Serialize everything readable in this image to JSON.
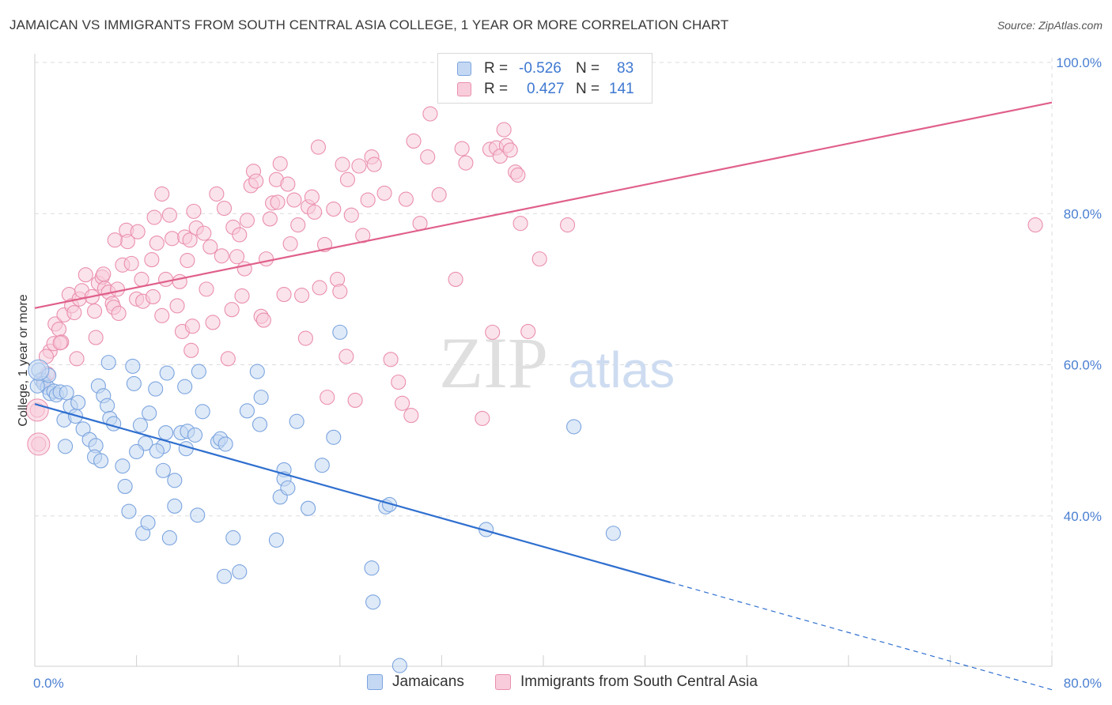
{
  "title": "JAMAICAN VS IMMIGRANTS FROM SOUTH CENTRAL ASIA COLLEGE, 1 YEAR OR MORE CORRELATION CHART",
  "source": "Source: ZipAtlas.com",
  "watermark": {
    "zip": "ZIP",
    "atlas": "atlas"
  },
  "legend_top": [
    {
      "r_label": "R =",
      "r_value": "-0.526",
      "n_label": "N =",
      "n_value": "83"
    },
    {
      "r_label": "R =",
      "r_value": "0.427",
      "n_label": "N =",
      "n_value": "141"
    }
  ],
  "legend_bottom": [
    "Jamaicans",
    "Immigrants from South Central Asia"
  ],
  "colors": {
    "blue_fill": "#c4d8f3",
    "blue_stroke": "#7ba4df",
    "blue_line": "#2f6fcf",
    "pink_fill": "#f8ccda",
    "pink_stroke": "#ea8fad",
    "pink_line": "#e0608a",
    "grid": "#dcdcdc",
    "tick_text": "#4a7fd1"
  },
  "chart_data": {
    "type": "scatter",
    "title": "JAMAICAN VS IMMIGRANTS FROM SOUTH CENTRAL ASIA COLLEGE, 1 YEAR OR MORE CORRELATION CHART",
    "xlabel": "",
    "ylabel": "College, 1 year or more",
    "xlim": [
      0,
      80
    ],
    "ylim": [
      20,
      102
    ],
    "x_tick_labels": [
      "0.0%",
      "80.0%"
    ],
    "y_ticks": [
      40,
      60,
      80,
      100
    ],
    "y_tick_labels": [
      "40.0%",
      "60.0%",
      "80.0%",
      "100.0%"
    ],
    "grid": true,
    "legend_position": "top-center",
    "series": [
      {
        "name": "Jamaicans",
        "r": -0.526,
        "n": 83,
        "trend": {
          "x_start": 0,
          "y_start": 54.8,
          "x_end": 50,
          "y_end": 31.2,
          "dashed_to_x": 80,
          "dashed_to_y": 17.0
        },
        "points": [
          [
            0.3,
            59.3
          ],
          [
            0.5,
            58.0
          ],
          [
            0.7,
            57.5
          ],
          [
            1.0,
            57.0
          ],
          [
            1.2,
            56.2
          ],
          [
            1.5,
            56.5
          ],
          [
            1.7,
            56.0
          ],
          [
            2.0,
            56.4
          ],
          [
            2.5,
            56.3
          ],
          [
            2.8,
            54.5
          ],
          [
            2.3,
            52.7
          ],
          [
            3.2,
            53.2
          ],
          [
            2.4,
            49.2
          ],
          [
            3.8,
            51.5
          ],
          [
            4.3,
            50.1
          ],
          [
            4.8,
            49.3
          ],
          [
            5.0,
            57.2
          ],
          [
            5.4,
            55.9
          ],
          [
            5.7,
            54.6
          ],
          [
            5.9,
            52.9
          ],
          [
            6.2,
            52.2
          ],
          [
            5.8,
            60.3
          ],
          [
            7.7,
            59.8
          ],
          [
            7.8,
            57.5
          ],
          [
            8.3,
            52.0
          ],
          [
            8.7,
            49.6
          ],
          [
            4.7,
            47.8
          ],
          [
            5.2,
            47.3
          ],
          [
            6.9,
            46.6
          ],
          [
            7.1,
            43.9
          ],
          [
            7.4,
            40.6
          ],
          [
            8.0,
            48.5
          ],
          [
            8.5,
            37.7
          ],
          [
            8.9,
            39.1
          ],
          [
            9.0,
            53.6
          ],
          [
            9.5,
            56.8
          ],
          [
            10.1,
            49.2
          ],
          [
            10.3,
            51.0
          ],
          [
            10.1,
            46.0
          ],
          [
            10.4,
            58.9
          ],
          [
            10.6,
            37.1
          ],
          [
            11.0,
            44.7
          ],
          [
            11.0,
            41.3
          ],
          [
            11.5,
            51.0
          ],
          [
            11.8,
            57.1
          ],
          [
            11.9,
            48.9
          ],
          [
            12.0,
            51.2
          ],
          [
            12.6,
            50.7
          ],
          [
            12.8,
            40.1
          ],
          [
            12.9,
            59.1
          ],
          [
            14.4,
            49.8
          ],
          [
            14.6,
            50.2
          ],
          [
            15.0,
            49.5
          ],
          [
            14.9,
            32.0
          ],
          [
            15.6,
            37.1
          ],
          [
            16.1,
            32.6
          ],
          [
            16.7,
            53.9
          ],
          [
            17.5,
            59.1
          ],
          [
            17.7,
            52.1
          ],
          [
            17.8,
            55.7
          ],
          [
            19.0,
            36.8
          ],
          [
            19.3,
            42.5
          ],
          [
            19.6,
            46.1
          ],
          [
            19.6,
            44.9
          ],
          [
            19.9,
            43.7
          ],
          [
            20.6,
            52.5
          ],
          [
            21.5,
            41.0
          ],
          [
            22.6,
            46.7
          ],
          [
            23.5,
            50.4
          ],
          [
            24.0,
            64.3
          ],
          [
            26.5,
            33.1
          ],
          [
            26.6,
            28.6
          ],
          [
            27.6,
            41.2
          ],
          [
            27.9,
            41.5
          ],
          [
            28.7,
            20.2
          ],
          [
            35.5,
            38.2
          ],
          [
            42.4,
            51.8
          ],
          [
            45.5,
            37.7
          ],
          [
            0.2,
            57.2
          ],
          [
            1.1,
            58.6
          ],
          [
            9.6,
            48.6
          ],
          [
            13.2,
            53.8
          ],
          [
            3.4,
            55.0
          ]
        ]
      },
      {
        "name": "Immigrants from South Central Asia",
        "r": 0.427,
        "n": 141,
        "trend": {
          "x_start": 0,
          "y_start": 67.5,
          "x_end": 80,
          "y_end": 94.7
        },
        "points": [
          [
            0.2,
            54.0
          ],
          [
            0.3,
            49.5
          ],
          [
            0.7,
            58.0
          ],
          [
            1.0,
            58.8
          ],
          [
            1.2,
            61.8
          ],
          [
            1.5,
            62.8
          ],
          [
            1.6,
            65.4
          ],
          [
            1.9,
            64.7
          ],
          [
            2.1,
            63.0
          ],
          [
            2.3,
            66.6
          ],
          [
            2.7,
            69.3
          ],
          [
            2.9,
            67.8
          ],
          [
            3.1,
            66.9
          ],
          [
            3.3,
            60.8
          ],
          [
            3.5,
            68.7
          ],
          [
            3.7,
            69.8
          ],
          [
            4.0,
            71.9
          ],
          [
            4.5,
            69.0
          ],
          [
            4.7,
            67.1
          ],
          [
            4.8,
            63.6
          ],
          [
            5.0,
            70.8
          ],
          [
            5.3,
            71.6
          ],
          [
            5.4,
            72.0
          ],
          [
            5.5,
            70.1
          ],
          [
            5.8,
            69.6
          ],
          [
            6.1,
            68.1
          ],
          [
            6.2,
            67.6
          ],
          [
            6.5,
            70.0
          ],
          [
            6.6,
            66.8
          ],
          [
            6.9,
            73.2
          ],
          [
            7.2,
            77.8
          ],
          [
            7.3,
            76.3
          ],
          [
            7.6,
            73.4
          ],
          [
            8.0,
            68.7
          ],
          [
            8.1,
            77.6
          ],
          [
            8.4,
            71.3
          ],
          [
            8.5,
            68.4
          ],
          [
            9.2,
            73.9
          ],
          [
            9.3,
            69.0
          ],
          [
            9.6,
            76.1
          ],
          [
            10.0,
            66.5
          ],
          [
            10.0,
            82.6
          ],
          [
            10.3,
            71.3
          ],
          [
            10.6,
            79.8
          ],
          [
            10.8,
            76.7
          ],
          [
            11.2,
            67.8
          ],
          [
            11.4,
            71.0
          ],
          [
            11.6,
            64.4
          ],
          [
            11.8,
            76.9
          ],
          [
            12.0,
            73.8
          ],
          [
            12.2,
            76.5
          ],
          [
            12.4,
            65.1
          ],
          [
            12.5,
            80.3
          ],
          [
            12.7,
            78.1
          ],
          [
            13.3,
            77.4
          ],
          [
            13.5,
            70.0
          ],
          [
            13.8,
            75.6
          ],
          [
            14.0,
            65.6
          ],
          [
            14.3,
            82.6
          ],
          [
            14.7,
            74.4
          ],
          [
            15.2,
            60.8
          ],
          [
            15.5,
            67.3
          ],
          [
            15.6,
            78.2
          ],
          [
            15.9,
            74.3
          ],
          [
            16.1,
            77.2
          ],
          [
            16.3,
            69.1
          ],
          [
            16.5,
            72.7
          ],
          [
            16.7,
            79.1
          ],
          [
            17.0,
            83.7
          ],
          [
            17.2,
            85.6
          ],
          [
            17.4,
            84.3
          ],
          [
            17.8,
            66.4
          ],
          [
            18.0,
            65.9
          ],
          [
            18.2,
            74.0
          ],
          [
            18.5,
            79.3
          ],
          [
            18.7,
            81.4
          ],
          [
            19.0,
            84.5
          ],
          [
            19.3,
            86.6
          ],
          [
            19.6,
            69.3
          ],
          [
            19.9,
            83.9
          ],
          [
            20.1,
            76.0
          ],
          [
            20.4,
            81.8
          ],
          [
            20.7,
            78.5
          ],
          [
            21.0,
            69.2
          ],
          [
            21.3,
            63.5
          ],
          [
            21.5,
            80.9
          ],
          [
            21.8,
            82.2
          ],
          [
            22.0,
            80.2
          ],
          [
            22.3,
            88.8
          ],
          [
            22.8,
            75.9
          ],
          [
            23.0,
            55.7
          ],
          [
            23.5,
            80.6
          ],
          [
            23.8,
            71.3
          ],
          [
            24.0,
            69.7
          ],
          [
            24.2,
            86.5
          ],
          [
            24.6,
            84.5
          ],
          [
            24.9,
            79.8
          ],
          [
            25.2,
            55.3
          ],
          [
            25.5,
            86.3
          ],
          [
            25.8,
            77.1
          ],
          [
            26.2,
            81.8
          ],
          [
            26.5,
            87.5
          ],
          [
            27.5,
            82.7
          ],
          [
            28.0,
            60.7
          ],
          [
            28.6,
            57.7
          ],
          [
            28.9,
            54.9
          ],
          [
            29.2,
            81.9
          ],
          [
            29.6,
            53.3
          ],
          [
            29.8,
            89.6
          ],
          [
            30.3,
            78.7
          ],
          [
            31.1,
            93.2
          ],
          [
            31.8,
            82.5
          ],
          [
            33.1,
            71.3
          ],
          [
            33.6,
            88.6
          ],
          [
            33.9,
            86.7
          ],
          [
            35.2,
            52.9
          ],
          [
            36.0,
            64.3
          ],
          [
            35.8,
            88.5
          ],
          [
            36.3,
            88.7
          ],
          [
            36.6,
            87.6
          ],
          [
            36.9,
            91.1
          ],
          [
            37.1,
            89.0
          ],
          [
            37.8,
            85.5
          ],
          [
            38.0,
            85.1
          ],
          [
            38.2,
            78.7
          ],
          [
            38.8,
            64.4
          ],
          [
            39.7,
            74.0
          ],
          [
            41.9,
            78.5
          ],
          [
            78.7,
            78.5
          ],
          [
            0.9,
            61.1
          ],
          [
            2.0,
            62.9
          ],
          [
            6.3,
            76.5
          ],
          [
            9.4,
            79.5
          ],
          [
            12.3,
            61.9
          ],
          [
            14.9,
            80.7
          ],
          [
            19.1,
            81.5
          ],
          [
            22.4,
            70.2
          ],
          [
            24.5,
            61.1
          ],
          [
            26.7,
            86.5
          ],
          [
            30.9,
            87.5
          ],
          [
            37.4,
            88.4
          ]
        ]
      }
    ]
  }
}
